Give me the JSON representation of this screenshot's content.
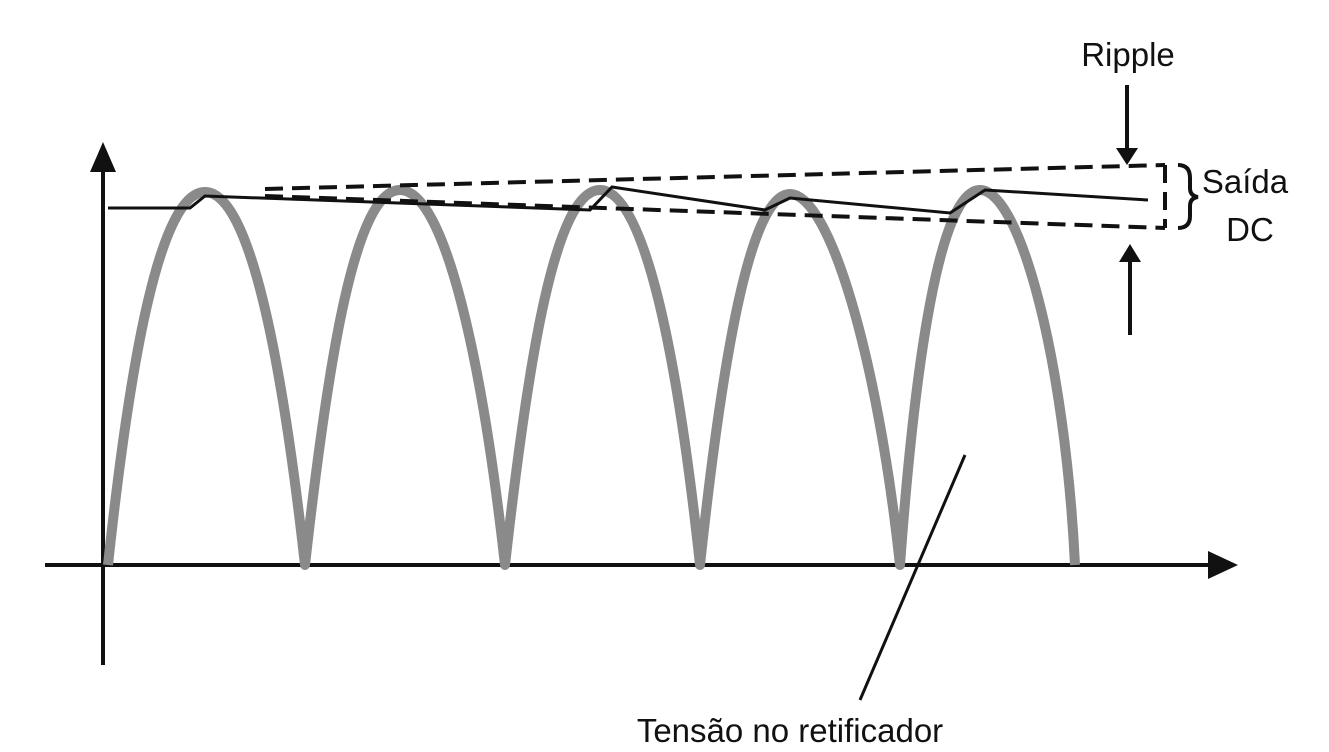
{
  "labels": {
    "ripple": "Ripple",
    "output_line1": "Saída",
    "output_line2": "DC",
    "rectifier": "Tensão no retificador"
  }
}
